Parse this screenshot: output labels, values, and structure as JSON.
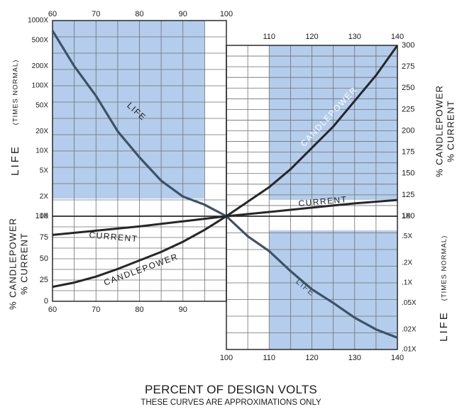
{
  "chart_data": {
    "type": "line",
    "xlabel": "PERCENT OF DESIGN VOLTS",
    "subtitle": "THESE CURVES ARE APPROXIMATIONS ONLY",
    "colors": {
      "shade": "#b4cdec",
      "grid": "#6f6f6f",
      "axis": "#1c1c1c",
      "life_line": "#3d5269",
      "other_lines": "#262626",
      "text": "#1a1a1a"
    },
    "upper_left": {
      "xlim": [
        60,
        100
      ],
      "x_ticks": [
        "60",
        "70",
        "80",
        "90",
        "100"
      ],
      "y_ticks": [
        "1000X",
        "500X",
        "200X",
        "100X",
        "50X",
        "20X",
        "10X",
        "5X",
        "2X",
        "1X"
      ],
      "y_label": "LIFE",
      "y_label_sub": "(TIMES NORMAL)"
    },
    "upper_right": {
      "xlim": [
        100,
        140
      ],
      "x_ticks": [
        "110",
        "120",
        "130",
        "140"
      ],
      "ylim": [
        100,
        300
      ],
      "y_ticks": [
        "300",
        "275",
        "250",
        "225",
        "200",
        "175",
        "150",
        "125",
        "100"
      ],
      "y_label_1": "% CANDLEPOWER",
      "y_label_2": "% CURRENT"
    },
    "lower_left": {
      "xlim": [
        60,
        100
      ],
      "x_ticks": [
        "60",
        "70",
        "80",
        "90"
      ],
      "ylim": [
        0,
        100
      ],
      "y_ticks": [
        "100",
        "75",
        "50",
        "25",
        "0"
      ],
      "y_label_1": "% CANDLEPOWER",
      "y_label_2": "% CURRENT"
    },
    "lower_right": {
      "xlim": [
        100,
        140
      ],
      "x_ticks": [
        "100",
        "110",
        "120",
        "130",
        "140"
      ],
      "y_ticks": [
        "1X",
        ".5X",
        ".2X",
        ".1X",
        ".05X",
        ".02X",
        ".01X"
      ],
      "y_label": "LIFE",
      "y_label_sub": "(TIMES NORMAL)"
    },
    "series": [
      {
        "name": "LIFE",
        "unit": "times normal",
        "x": [
          60,
          65,
          70,
          75,
          80,
          85,
          90,
          95,
          100,
          105,
          110,
          115,
          120,
          125,
          130,
          135,
          140
        ],
        "y": [
          700,
          200,
          70,
          20,
          8,
          3.5,
          2,
          1.5,
          1,
          0.5,
          0.3,
          0.15,
          0.08,
          0.05,
          0.03,
          0.02,
          0.015
        ]
      },
      {
        "name": "CANDLEPOWER",
        "unit": "% of normal",
        "x": [
          60,
          65,
          70,
          75,
          80,
          85,
          90,
          95,
          100,
          105,
          110,
          115,
          120,
          125,
          130,
          135,
          140
        ],
        "y": [
          17,
          22,
          29,
          38,
          48,
          58,
          70,
          84,
          100,
          117,
          134,
          155,
          180,
          205,
          235,
          265,
          300
        ]
      },
      {
        "name": "CURRENT",
        "unit": "% of normal",
        "x": [
          60,
          70,
          80,
          90,
          100,
          110,
          120,
          130,
          140
        ],
        "y": [
          78,
          83,
          88,
          94,
          100,
          105,
          110,
          115,
          119
        ]
      }
    ]
  }
}
